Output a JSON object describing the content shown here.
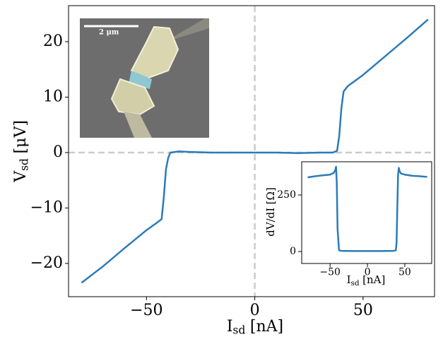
{
  "chart_data": [
    {
      "type": "line",
      "xlabel": {
        "symbol": "I",
        "subscript": "sd",
        "unit": "[nA]"
      },
      "ylabel": {
        "symbol": "V",
        "subscript": "sd",
        "unit": "[μV]"
      },
      "x": [
        -80,
        -70,
        -60,
        -50,
        -45,
        -43,
        -42,
        -41,
        -40,
        -39,
        -35,
        -30,
        -20,
        -10,
        0,
        10,
        20,
        30,
        36,
        38,
        39,
        40,
        41,
        43,
        50,
        60,
        70,
        80
      ],
      "series": [
        {
          "color": "#2b7bba",
          "values": [
            -23.5,
            -20.5,
            -17.2,
            -14,
            -12.6,
            -12,
            -8,
            -3,
            -1,
            0,
            0.2,
            0.1,
            0,
            0,
            0,
            0,
            -0.1,
            0,
            0,
            0.3,
            3,
            8,
            11,
            12,
            14,
            17.3,
            20.6,
            24
          ]
        }
      ],
      "xlim": [
        -86,
        83
      ],
      "ylim": [
        -26,
        26.5
      ],
      "xticks": [
        {
          "value": -50,
          "label": "−50"
        },
        0,
        50
      ],
      "yticks": [
        {
          "value": -20,
          "label": "−20"
        },
        {
          "value": -10,
          "label": "−10"
        },
        0,
        10,
        20
      ],
      "vlines": [
        0
      ],
      "hlines": [
        0
      ],
      "ref_color": "#cccccc"
    },
    {
      "type": "line",
      "xlabel": {
        "symbol": "I",
        "subscript": "sd",
        "unit": "[nA]"
      },
      "ylabel": {
        "symbol": "dV/dI",
        "subscript": "",
        "unit": "[Ω]"
      },
      "x": [
        -80,
        -70,
        -60,
        -50,
        -45,
        -43,
        -42,
        -41,
        -40,
        -38,
        -35,
        -20,
        0,
        20,
        35,
        38,
        39,
        40,
        41,
        42,
        43,
        45,
        50,
        60,
        70,
        80
      ],
      "series": [
        {
          "color": "#2b7bba",
          "values": [
            328,
            333,
            337,
            340,
            348,
            360,
            375,
            300,
            100,
            5,
            3,
            2,
            2,
            2,
            3,
            5,
            40,
            200,
            340,
            370,
            355,
            345,
            340,
            335,
            333,
            330
          ]
        }
      ],
      "xlim": [
        -88,
        86
      ],
      "ylim": [
        -53,
        397
      ],
      "xticks": [
        {
          "value": -50,
          "label": "−50"
        },
        0,
        50
      ],
      "yticks": [
        0,
        250
      ]
    }
  ],
  "inset_image": {
    "scale_bar": "2 μm"
  }
}
